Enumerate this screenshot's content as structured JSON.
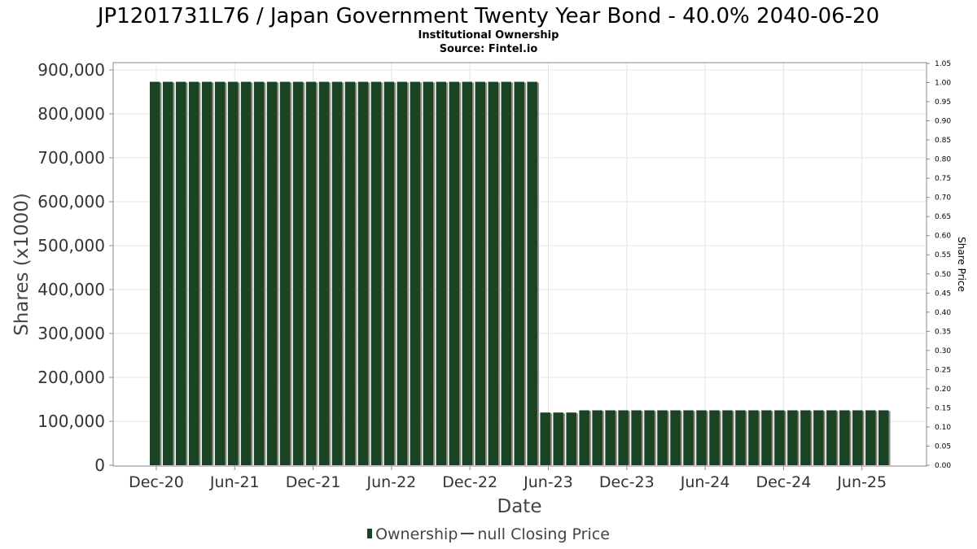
{
  "chart_data": {
    "type": "bar",
    "title": "JP1201731L76 / Japan Government Twenty Year Bond - 40.0% 2040-06-20",
    "subtitle_1": "Institutional Ownership",
    "subtitle_2": "Source: Fintel.io",
    "xlabel": "Date",
    "ylabel": "Shares (x1000)",
    "y2label": "Share Price",
    "ylim": [
      0,
      900000
    ],
    "y2lim": [
      0,
      1.05
    ],
    "yticks": [
      "0",
      "100,000",
      "200,000",
      "300,000",
      "400,000",
      "500,000",
      "600,000",
      "700,000",
      "800,000",
      "900,000"
    ],
    "y2ticks": [
      "0.00",
      "0.05",
      "0.10",
      "0.15",
      "0.20",
      "0.25",
      "0.30",
      "0.35",
      "0.40",
      "0.45",
      "0.50",
      "0.55",
      "0.60",
      "0.65",
      "0.70",
      "0.75",
      "0.80",
      "0.85",
      "0.90",
      "0.95",
      "1.00",
      "1.05"
    ],
    "xticks": [
      "Dec-20",
      "Jun-21",
      "Dec-21",
      "Jun-22",
      "Dec-22",
      "Jun-23",
      "Dec-23",
      "Jun-24",
      "Dec-24",
      "Jun-25"
    ],
    "grid": true,
    "legend_position": "bottom",
    "colors": {
      "ownership": "#1a4323",
      "bar_shadow": "#8a8a8a"
    },
    "series": [
      {
        "name": "Ownership",
        "values": [
          873000,
          873000,
          873000,
          873000,
          873000,
          873000,
          873000,
          873000,
          873000,
          873000,
          873000,
          873000,
          873000,
          873000,
          873000,
          873000,
          873000,
          873000,
          873000,
          873000,
          873000,
          873000,
          873000,
          873000,
          873000,
          873000,
          873000,
          873000,
          873000,
          873000,
          120000,
          120000,
          120000,
          125000,
          125000,
          125000,
          125000,
          125000,
          125000,
          125000,
          125000,
          125000,
          125000,
          125000,
          125000,
          125000,
          125000,
          125000,
          125000,
          125000,
          125000,
          125000,
          125000,
          125000,
          125000,
          125000,
          125000
        ]
      }
    ]
  },
  "legend": {
    "ownership_label": "Ownership",
    "price_label": "null Closing Price"
  }
}
